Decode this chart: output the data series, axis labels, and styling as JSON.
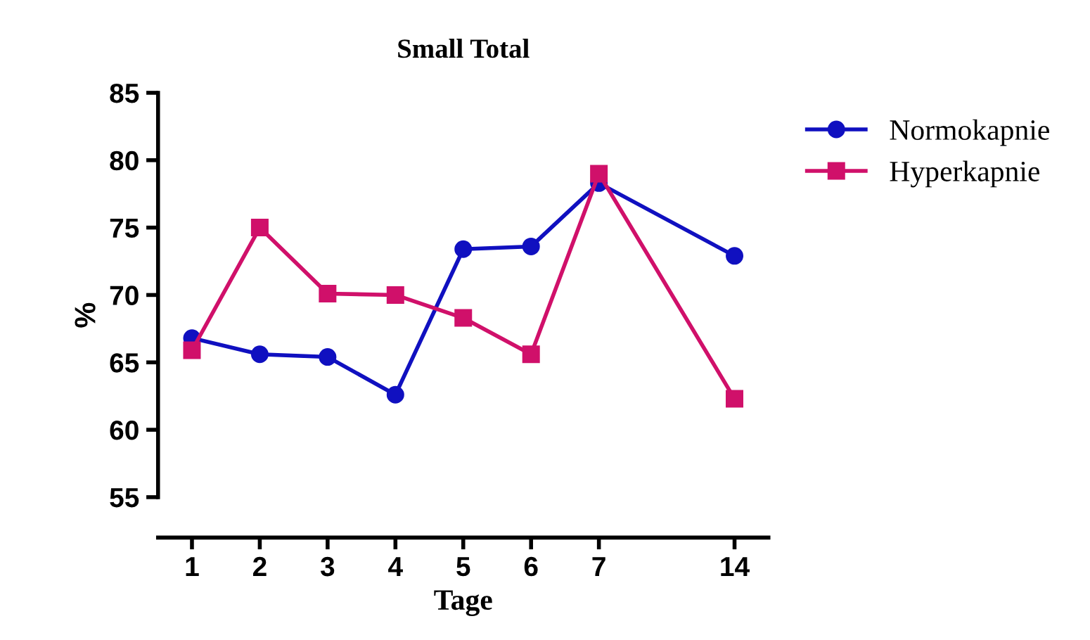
{
  "chart_data": {
    "type": "line",
    "title": "Small Total",
    "xlabel": "Tage",
    "ylabel": "%",
    "categories": [
      "1",
      "2",
      "3",
      "4",
      "5",
      "6",
      "7",
      null,
      "14"
    ],
    "series": [
      {
        "name": "Normokapnie",
        "color": "#1010c0",
        "marker": "circle",
        "values": [
          66.8,
          65.6,
          65.4,
          62.6,
          73.4,
          73.6,
          78.3,
          null,
          72.9
        ]
      },
      {
        "name": "Hyperkapnie",
        "color": "#d0106a",
        "marker": "square",
        "values": [
          65.9,
          75.0,
          70.1,
          70.0,
          68.3,
          65.6,
          79.0,
          null,
          62.3
        ]
      }
    ],
    "ylim": [
      52,
      85
    ],
    "yticks": [
      55,
      60,
      65,
      70,
      75,
      80,
      85
    ],
    "grid": false,
    "legend": "top right",
    "line_style": "solid"
  }
}
